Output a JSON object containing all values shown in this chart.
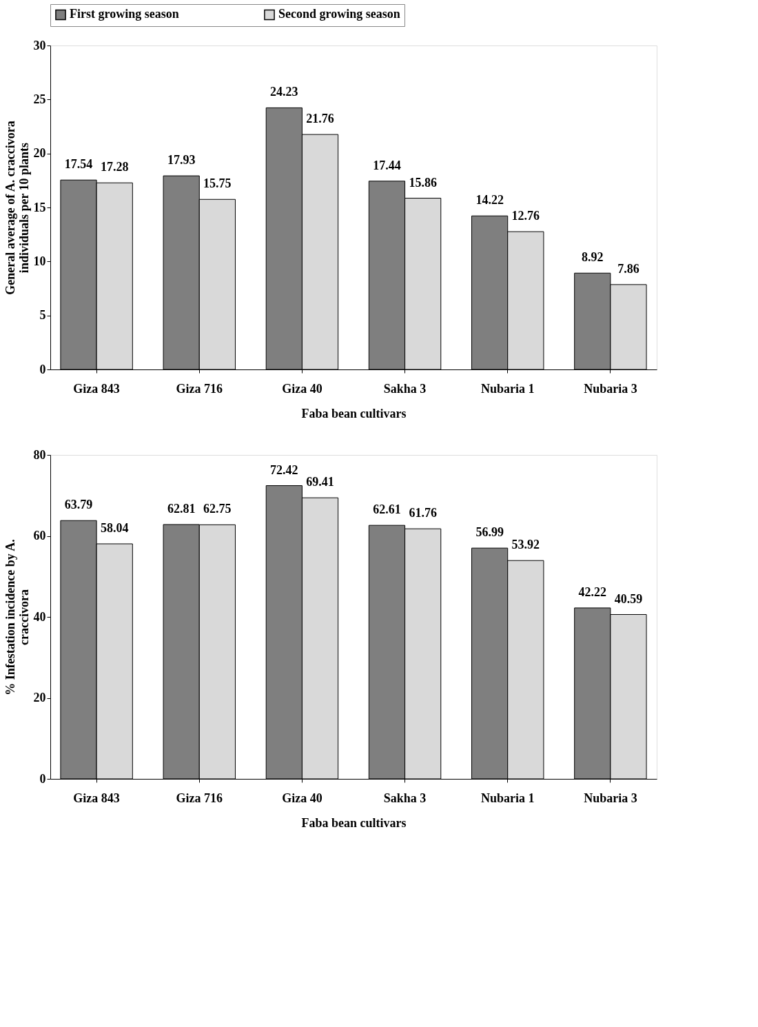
{
  "chart_data": [
    {
      "type": "bar",
      "xlabel": "Faba bean cultivars",
      "ylabel": "General average of A. craccivora\nindividuals per 10 plants",
      "categories": [
        "Giza 843",
        "Giza 716",
        "Giza 40",
        "Sakha 3",
        "Nubaria 1",
        "Nubaria 3"
      ],
      "series": [
        {
          "name": "First growing season",
          "color": "#7f7f7f",
          "values": [
            17.54,
            17.93,
            24.23,
            17.44,
            14.22,
            8.92
          ]
        },
        {
          "name": "Second growing season",
          "color": "#d9d9d9",
          "values": [
            17.28,
            15.75,
            21.76,
            15.86,
            12.76,
            7.86
          ]
        }
      ],
      "ylim": [
        0,
        30
      ],
      "yticks": [
        0,
        5,
        10,
        15,
        20,
        25,
        30
      ],
      "grid": false,
      "legend": "top",
      "data_labels": true
    },
    {
      "type": "bar",
      "xlabel": "Faba bean cultivars",
      "ylabel": "% Infestation incidence by A.\ncraccivora",
      "categories": [
        "Giza 843",
        "Giza 716",
        "Giza 40",
        "Sakha 3",
        "Nubaria 1",
        "Nubaria 3"
      ],
      "series": [
        {
          "name": "First growing season",
          "color": "#7f7f7f",
          "values": [
            63.79,
            62.81,
            72.42,
            62.61,
            56.99,
            42.22
          ]
        },
        {
          "name": "Second growing season",
          "color": "#d9d9d9",
          "values": [
            58.04,
            62.75,
            69.41,
            61.76,
            53.92,
            40.59
          ]
        }
      ],
      "ylim": [
        0,
        80
      ],
      "yticks": [
        0,
        20,
        40,
        60,
        80
      ],
      "grid": false,
      "legend": "top",
      "data_labels": true
    }
  ]
}
